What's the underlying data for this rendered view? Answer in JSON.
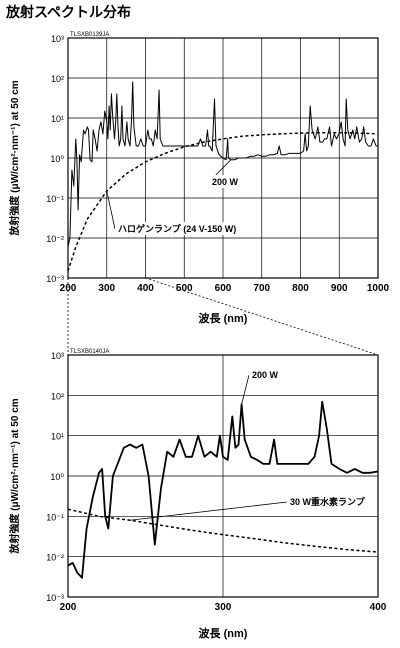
{
  "page": {
    "title": "放射スペクトル分布"
  },
  "chart_data": [
    {
      "type": "line",
      "code": "TLSXB0139JA",
      "xlabel": "波長 (nm)",
      "ylabel": "放射強度 (μW/cm²·nm⁻¹) at 50 cm",
      "xlim": [
        200,
        1000
      ],
      "x_ticks": [
        200,
        300,
        400,
        500,
        600,
        700,
        800,
        900,
        1000
      ],
      "ylim_log10": [
        -3,
        3
      ],
      "y_ticks": [
        {
          "label": "10⁻³",
          "exp": -3
        },
        {
          "label": "10⁻²",
          "exp": -2
        },
        {
          "label": "10⁻¹",
          "exp": -1
        },
        {
          "label": "10⁰",
          "exp": 0
        },
        {
          "label": "10¹",
          "exp": 1
        },
        {
          "label": "10²",
          "exp": 2
        },
        {
          "label": "10³",
          "exp": 3
        }
      ],
      "grid": true,
      "series": [
        {
          "name": "200 W",
          "style": "solid",
          "points": [
            [
              200,
              0.006
            ],
            [
              205,
              0.01
            ],
            [
              210,
              0.5
            ],
            [
              215,
              0.2
            ],
            [
              220,
              3
            ],
            [
              223,
              0.9
            ],
            [
              226,
              0.05
            ],
            [
              230,
              1.2
            ],
            [
              234,
              0.8
            ],
            [
              240,
              5
            ],
            [
              244,
              4
            ],
            [
              250,
              6
            ],
            [
              253,
              5
            ],
            [
              257,
              0.9
            ],
            [
              262,
              0.8
            ],
            [
              265,
              5
            ],
            [
              270,
              3
            ],
            [
              275,
              1.5
            ],
            [
              280,
              5
            ],
            [
              285,
              8
            ],
            [
              290,
              4
            ],
            [
              295,
              15
            ],
            [
              300,
              8
            ],
            [
              303,
              3
            ],
            [
              306,
              20
            ],
            [
              309,
              5
            ],
            [
              312,
              40
            ],
            [
              315,
              12
            ],
            [
              320,
              3
            ],
            [
              323,
              8
            ],
            [
              326,
              40
            ],
            [
              329,
              6
            ],
            [
              332,
              2
            ],
            [
              336,
              3
            ],
            [
              339,
              20
            ],
            [
              342,
              3
            ],
            [
              347,
              2
            ],
            [
              352,
              8
            ],
            [
              355,
              3
            ],
            [
              360,
              2
            ],
            [
              364,
              10
            ],
            [
              367,
              80
            ],
            [
              370,
              6
            ],
            [
              376,
              2
            ],
            [
              382,
              2
            ],
            [
              388,
              3
            ],
            [
              394,
              2
            ],
            [
              400,
              2
            ],
            [
              406,
              5
            ],
            [
              410,
              3
            ],
            [
              415,
              3
            ],
            [
              420,
              2
            ],
            [
              425,
              5
            ],
            [
              430,
              3
            ],
            [
              435,
              50
            ],
            [
              438,
              3
            ],
            [
              445,
              2
            ],
            [
              455,
              2
            ],
            [
              465,
              2
            ],
            [
              475,
              2
            ],
            [
              485,
              2
            ],
            [
              495,
              2
            ],
            [
              505,
              2
            ],
            [
              515,
              2
            ],
            [
              525,
              2
            ],
            [
              535,
              2
            ],
            [
              542,
              3
            ],
            [
              548,
              2
            ],
            [
              555,
              2
            ],
            [
              560,
              5
            ],
            [
              563,
              2
            ],
            [
              566,
              2
            ],
            [
              572,
              1.5
            ],
            [
              578,
              30
            ],
            [
              582,
              2
            ],
            [
              590,
              1.2
            ],
            [
              600,
              1
            ],
            [
              608,
              0.9
            ],
            [
              612,
              3
            ],
            [
              614,
              1
            ],
            [
              620,
              0.9
            ],
            [
              630,
              0.9
            ],
            [
              640,
              1
            ],
            [
              650,
              1
            ],
            [
              660,
              1
            ],
            [
              670,
              1.1
            ],
            [
              680,
              1.1
            ],
            [
              690,
              1.2
            ],
            [
              700,
              1.1
            ],
            [
              710,
              1.1
            ],
            [
              720,
              1.2
            ],
            [
              730,
              1.2
            ],
            [
              740,
              1.3
            ],
            [
              745,
              2
            ],
            [
              750,
              1.2
            ],
            [
              760,
              1.2
            ],
            [
              770,
              1.3
            ],
            [
              780,
              1.3
            ],
            [
              790,
              1.3
            ],
            [
              800,
              1.3
            ],
            [
              808,
              1.5
            ],
            [
              812,
              4
            ],
            [
              816,
              1.5
            ],
            [
              820,
              2
            ],
            [
              825,
              20
            ],
            [
              830,
              5
            ],
            [
              838,
              3
            ],
            [
              845,
              6
            ],
            [
              850,
              2.5
            ],
            [
              857,
              2.5
            ],
            [
              862,
              3
            ],
            [
              868,
              3
            ],
            [
              875,
              6
            ],
            [
              880,
              2
            ],
            [
              887,
              4
            ],
            [
              893,
              3
            ],
            [
              899,
              4
            ],
            [
              905,
              8
            ],
            [
              910,
              3
            ],
            [
              915,
              2
            ],
            [
              918,
              30
            ],
            [
              922,
              5
            ],
            [
              928,
              3
            ],
            [
              935,
              5
            ],
            [
              940,
              3
            ],
            [
              945,
              6
            ],
            [
              952,
              2.5
            ],
            [
              958,
              3
            ],
            [
              963,
              6
            ],
            [
              968,
              2.5
            ],
            [
              975,
              2
            ],
            [
              982,
              2
            ],
            [
              988,
              3
            ],
            [
              995,
              2
            ],
            [
              1000,
              2
            ]
          ]
        },
        {
          "name": "ハロゲンランプ (24 V-150 W)",
          "style": "dashed",
          "points": [
            [
              200,
              0.0015
            ],
            [
              220,
              0.006
            ],
            [
              250,
              0.03
            ],
            [
              300,
              0.15
            ],
            [
              350,
              0.4
            ],
            [
              400,
              0.8
            ],
            [
              450,
              1.3
            ],
            [
              500,
              1.9
            ],
            [
              550,
              2.5
            ],
            [
              600,
              3
            ],
            [
              650,
              3.5
            ],
            [
              700,
              3.8
            ],
            [
              750,
              4
            ],
            [
              800,
              4.2
            ],
            [
              850,
              4.3
            ],
            [
              900,
              4.3
            ],
            [
              950,
              4.2
            ],
            [
              1000,
              4
            ]
          ]
        }
      ],
      "annotations": [
        "200 W",
        "ハロゲンランプ (24 V-150 W)"
      ]
    },
    {
      "type": "line",
      "code": "TLSXB0140JA",
      "xlabel": "波長 (nm)",
      "ylabel": "放射強度 (μW/cm²·nm⁻¹) at 50 cm",
      "xlim": [
        200,
        400
      ],
      "x_ticks": [
        200,
        300,
        400
      ],
      "ylim_log10": [
        -3,
        3
      ],
      "y_ticks": [
        {
          "label": "10⁻³",
          "exp": -3
        },
        {
          "label": "10⁻²",
          "exp": -2
        },
        {
          "label": "10⁻¹",
          "exp": -1
        },
        {
          "label": "10⁰",
          "exp": 0
        },
        {
          "label": "10¹",
          "exp": 1
        },
        {
          "label": "10²",
          "exp": 2
        },
        {
          "label": "10³",
          "exp": 3
        }
      ],
      "grid": true,
      "series": [
        {
          "name": "200 W",
          "style": "solid",
          "points": [
            [
              200,
              0.006
            ],
            [
              203,
              0.007
            ],
            [
              206,
              0.004
            ],
            [
              209,
              0.003
            ],
            [
              212,
              0.05
            ],
            [
              216,
              0.3
            ],
            [
              220,
              1.2
            ],
            [
              222,
              1.5
            ],
            [
              224,
              0.1
            ],
            [
              226,
              0.05
            ],
            [
              229,
              1
            ],
            [
              232,
              2
            ],
            [
              236,
              5
            ],
            [
              240,
              6
            ],
            [
              244,
              5
            ],
            [
              248,
              6
            ],
            [
              252,
              1
            ],
            [
              256,
              0.02
            ],
            [
              260,
              0.5
            ],
            [
              264,
              4
            ],
            [
              268,
              3
            ],
            [
              272,
              8
            ],
            [
              276,
              3
            ],
            [
              280,
              3
            ],
            [
              284,
              10
            ],
            [
              288,
              3
            ],
            [
              292,
              4
            ],
            [
              296,
              3
            ],
            [
              298,
              10
            ],
            [
              300,
              3
            ],
            [
              303,
              2.5
            ],
            [
              306,
              30
            ],
            [
              308,
              5
            ],
            [
              310,
              6
            ],
            [
              312,
              60
            ],
            [
              314,
              8
            ],
            [
              318,
              3
            ],
            [
              322,
              2.5
            ],
            [
              326,
              2
            ],
            [
              330,
              2
            ],
            [
              333,
              8
            ],
            [
              335,
              2
            ],
            [
              340,
              2
            ],
            [
              345,
              2
            ],
            [
              350,
              2
            ],
            [
              355,
              2
            ],
            [
              359,
              3
            ],
            [
              362,
              10
            ],
            [
              364,
              70
            ],
            [
              367,
              15
            ],
            [
              370,
              2
            ],
            [
              375,
              1.5
            ],
            [
              380,
              1.2
            ],
            [
              385,
              1.5
            ],
            [
              390,
              1.2
            ],
            [
              395,
              1.2
            ],
            [
              400,
              1.3
            ]
          ]
        },
        {
          "name": "30 W重水素ランプ",
          "style": "dashed",
          "points": [
            [
              200,
              0.15
            ],
            [
              220,
              0.1
            ],
            [
              240,
              0.08
            ],
            [
              260,
              0.06
            ],
            [
              280,
              0.045
            ],
            [
              300,
              0.035
            ],
            [
              320,
              0.028
            ],
            [
              340,
              0.022
            ],
            [
              360,
              0.018
            ],
            [
              380,
              0.015
            ],
            [
              400,
              0.013
            ]
          ]
        }
      ],
      "annotations": [
        "200 W",
        "30 W重水素ランプ"
      ]
    }
  ]
}
